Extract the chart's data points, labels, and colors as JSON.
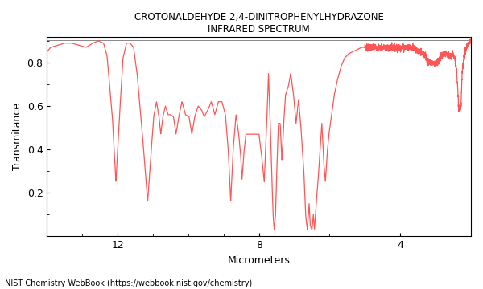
{
  "title_line1": "CROTONALDEHYDE 2,4-DINITROPHENYLHYDRAZONE",
  "title_line2": "INFRARED SPECTRUM",
  "xlabel": "Micrometers",
  "ylabel": "Transmitance",
  "footer": "NIST Chemistry WebBook (https://webbook.nist.gov/chemistry)",
  "xmin": 14.0,
  "xmax": 2.0,
  "ymin": 0.0,
  "ymax": 0.92,
  "line_color": "#FF5555",
  "bg_color": "#FFFFFF",
  "xticks": [
    12,
    8,
    4
  ],
  "yticks": [
    0.2,
    0.4,
    0.6,
    0.8
  ],
  "title_fontsize": 8.5,
  "label_fontsize": 9,
  "tick_fontsize": 9
}
